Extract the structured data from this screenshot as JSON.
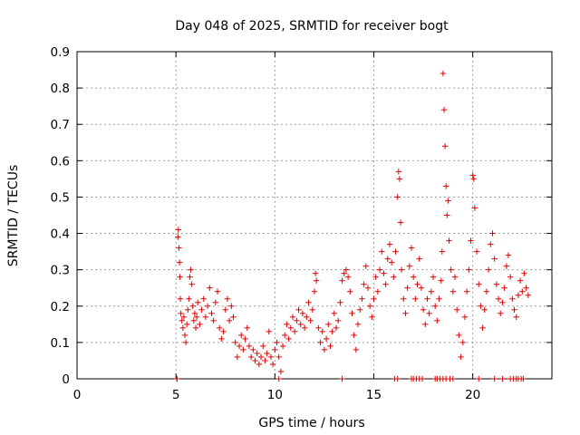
{
  "chart_data": {
    "type": "scatter",
    "title": "Day 048 of 2025, SRMTID for receiver bogt",
    "xlabel": "GPS time / hours",
    "ylabel": "SRMTID / TECUs",
    "xlim": [
      0,
      24
    ],
    "ylim": [
      0,
      0.9
    ],
    "xticks": [
      0,
      5,
      10,
      15,
      20
    ],
    "xtick_labels": [
      "0",
      "5",
      "10",
      "15",
      "20"
    ],
    "yticks": [
      0,
      0.1,
      0.2,
      0.3,
      0.4,
      0.5,
      0.6,
      0.7,
      0.8,
      0.9
    ],
    "ytick_labels": [
      "0",
      "0.1",
      "0.2",
      "0.3",
      "0.4",
      "0.5",
      "0.6",
      "0.7",
      "0.8",
      "0.9"
    ],
    "grid": true,
    "marker": "+",
    "color": "#e00000",
    "series": [
      {
        "name": "SRMTID",
        "points": [
          [
            5.05,
            0.0
          ],
          [
            5.1,
            0.39
          ],
          [
            5.12,
            0.41
          ],
          [
            5.15,
            0.36
          ],
          [
            5.18,
            0.32
          ],
          [
            5.2,
            0.28
          ],
          [
            5.22,
            0.22
          ],
          [
            5.25,
            0.18
          ],
          [
            5.3,
            0.16
          ],
          [
            5.35,
            0.14
          ],
          [
            5.4,
            0.17
          ],
          [
            5.45,
            0.12
          ],
          [
            5.5,
            0.1
          ],
          [
            5.55,
            0.15
          ],
          [
            5.6,
            0.19
          ],
          [
            5.65,
            0.22
          ],
          [
            5.7,
            0.28
          ],
          [
            5.75,
            0.3
          ],
          [
            5.8,
            0.26
          ],
          [
            5.85,
            0.2
          ],
          [
            5.9,
            0.16
          ],
          [
            5.95,
            0.18
          ],
          [
            6.0,
            0.14
          ],
          [
            6.05,
            0.17
          ],
          [
            6.1,
            0.21
          ],
          [
            6.2,
            0.15
          ],
          [
            6.3,
            0.19
          ],
          [
            6.4,
            0.22
          ],
          [
            6.5,
            0.17
          ],
          [
            6.6,
            0.2
          ],
          [
            6.7,
            0.25
          ],
          [
            6.8,
            0.18
          ],
          [
            6.9,
            0.16
          ],
          [
            7.0,
            0.21
          ],
          [
            7.1,
            0.24
          ],
          [
            7.2,
            0.14
          ],
          [
            7.3,
            0.11
          ],
          [
            7.4,
            0.13
          ],
          [
            7.5,
            0.19
          ],
          [
            7.6,
            0.22
          ],
          [
            7.7,
            0.16
          ],
          [
            7.8,
            0.2
          ],
          [
            7.9,
            0.17
          ],
          [
            8.0,
            0.1
          ],
          [
            8.1,
            0.06
          ],
          [
            8.2,
            0.09
          ],
          [
            8.3,
            0.12
          ],
          [
            8.4,
            0.08
          ],
          [
            8.5,
            0.11
          ],
          [
            8.6,
            0.14
          ],
          [
            8.7,
            0.09
          ],
          [
            8.8,
            0.06
          ],
          [
            8.9,
            0.08
          ],
          [
            9.0,
            0.05
          ],
          [
            9.1,
            0.07
          ],
          [
            9.2,
            0.04
          ],
          [
            9.3,
            0.06
          ],
          [
            9.4,
            0.09
          ],
          [
            9.5,
            0.05
          ],
          [
            9.6,
            0.07
          ],
          [
            9.7,
            0.13
          ],
          [
            9.8,
            0.06
          ],
          [
            9.9,
            0.04
          ],
          [
            10.0,
            0.08
          ],
          [
            10.1,
            0.1
          ],
          [
            10.2,
            0.06
          ],
          [
            10.3,
            0.02
          ],
          [
            10.4,
            0.09
          ],
          [
            10.5,
            0.12
          ],
          [
            10.6,
            0.15
          ],
          [
            10.7,
            0.11
          ],
          [
            10.8,
            0.14
          ],
          [
            10.9,
            0.17
          ],
          [
            11.0,
            0.13
          ],
          [
            11.1,
            0.16
          ],
          [
            11.2,
            0.19
          ],
          [
            11.3,
            0.15
          ],
          [
            11.4,
            0.18
          ],
          [
            11.5,
            0.14
          ],
          [
            11.6,
            0.17
          ],
          [
            11.7,
            0.21
          ],
          [
            11.8,
            0.16
          ],
          [
            11.9,
            0.19
          ],
          [
            12.0,
            0.24
          ],
          [
            12.05,
            0.29
          ],
          [
            12.1,
            0.27
          ],
          [
            12.2,
            0.14
          ],
          [
            12.3,
            0.1
          ],
          [
            12.4,
            0.13
          ],
          [
            12.5,
            0.08
          ],
          [
            12.6,
            0.11
          ],
          [
            12.7,
            0.15
          ],
          [
            12.8,
            0.09
          ],
          [
            12.9,
            0.13
          ],
          [
            13.0,
            0.18
          ],
          [
            13.1,
            0.14
          ],
          [
            13.2,
            0.16
          ],
          [
            13.3,
            0.21
          ],
          [
            13.4,
            0.27
          ],
          [
            13.5,
            0.29
          ],
          [
            13.6,
            0.3
          ],
          [
            13.7,
            0.28
          ],
          [
            13.8,
            0.24
          ],
          [
            13.9,
            0.18
          ],
          [
            14.0,
            0.12
          ],
          [
            14.1,
            0.08
          ],
          [
            14.2,
            0.15
          ],
          [
            14.3,
            0.19
          ],
          [
            14.4,
            0.22
          ],
          [
            14.5,
            0.26
          ],
          [
            14.6,
            0.31
          ],
          [
            14.7,
            0.25
          ],
          [
            14.8,
            0.2
          ],
          [
            14.9,
            0.17
          ],
          [
            15.0,
            0.22
          ],
          [
            15.1,
            0.28
          ],
          [
            15.2,
            0.24
          ],
          [
            15.3,
            0.3
          ],
          [
            15.4,
            0.35
          ],
          [
            15.5,
            0.29
          ],
          [
            15.6,
            0.26
          ],
          [
            15.7,
            0.33
          ],
          [
            15.8,
            0.37
          ],
          [
            15.9,
            0.32
          ],
          [
            16.0,
            0.28
          ],
          [
            16.1,
            0.35
          ],
          [
            16.2,
            0.5
          ],
          [
            16.25,
            0.57
          ],
          [
            16.3,
            0.55
          ],
          [
            16.35,
            0.43
          ],
          [
            16.4,
            0.3
          ],
          [
            16.5,
            0.22
          ],
          [
            16.6,
            0.18
          ],
          [
            16.7,
            0.25
          ],
          [
            16.8,
            0.31
          ],
          [
            16.9,
            0.36
          ],
          [
            17.0,
            0.28
          ],
          [
            17.1,
            0.22
          ],
          [
            17.2,
            0.26
          ],
          [
            17.3,
            0.33
          ],
          [
            17.4,
            0.25
          ],
          [
            17.5,
            0.19
          ],
          [
            17.6,
            0.15
          ],
          [
            17.7,
            0.22
          ],
          [
            17.8,
            0.18
          ],
          [
            17.9,
            0.24
          ],
          [
            18.0,
            0.28
          ],
          [
            18.1,
            0.2
          ],
          [
            18.2,
            0.16
          ],
          [
            18.3,
            0.22
          ],
          [
            18.4,
            0.27
          ],
          [
            18.45,
            0.35
          ],
          [
            18.5,
            0.84
          ],
          [
            18.55,
            0.74
          ],
          [
            18.6,
            0.64
          ],
          [
            18.65,
            0.53
          ],
          [
            18.7,
            0.45
          ],
          [
            18.75,
            0.49
          ],
          [
            18.8,
            0.38
          ],
          [
            18.9,
            0.3
          ],
          [
            19.0,
            0.24
          ],
          [
            19.1,
            0.28
          ],
          [
            19.2,
            0.19
          ],
          [
            19.3,
            0.12
          ],
          [
            19.4,
            0.06
          ],
          [
            19.5,
            0.1
          ],
          [
            19.6,
            0.17
          ],
          [
            19.7,
            0.24
          ],
          [
            19.8,
            0.3
          ],
          [
            19.9,
            0.38
          ],
          [
            20.0,
            0.56
          ],
          [
            20.05,
            0.55
          ],
          [
            20.1,
            0.47
          ],
          [
            20.2,
            0.35
          ],
          [
            20.3,
            0.26
          ],
          [
            20.4,
            0.2
          ],
          [
            20.5,
            0.14
          ],
          [
            20.6,
            0.19
          ],
          [
            20.7,
            0.24
          ],
          [
            20.8,
            0.3
          ],
          [
            20.9,
            0.37
          ],
          [
            21.0,
            0.4
          ],
          [
            21.1,
            0.33
          ],
          [
            21.2,
            0.26
          ],
          [
            21.3,
            0.22
          ],
          [
            21.4,
            0.18
          ],
          [
            21.5,
            0.21
          ],
          [
            21.6,
            0.25
          ],
          [
            21.7,
            0.31
          ],
          [
            21.8,
            0.34
          ],
          [
            21.9,
            0.28
          ],
          [
            22.0,
            0.22
          ],
          [
            22.1,
            0.19
          ],
          [
            22.2,
            0.17
          ],
          [
            22.3,
            0.23
          ],
          [
            22.4,
            0.27
          ],
          [
            22.5,
            0.24
          ],
          [
            22.6,
            0.29
          ],
          [
            22.7,
            0.25
          ],
          [
            22.8,
            0.23
          ]
        ]
      }
    ],
    "zero_points_x": [
      5.05,
      10.2,
      13.4,
      16.05,
      16.2,
      16.9,
      17.0,
      17.15,
      17.3,
      17.45,
      18.1,
      18.2,
      18.35,
      18.5,
      18.65,
      18.85,
      19.0,
      20.3,
      21.1,
      21.5,
      21.9,
      22.05,
      22.2,
      22.3,
      22.45,
      22.55
    ]
  }
}
